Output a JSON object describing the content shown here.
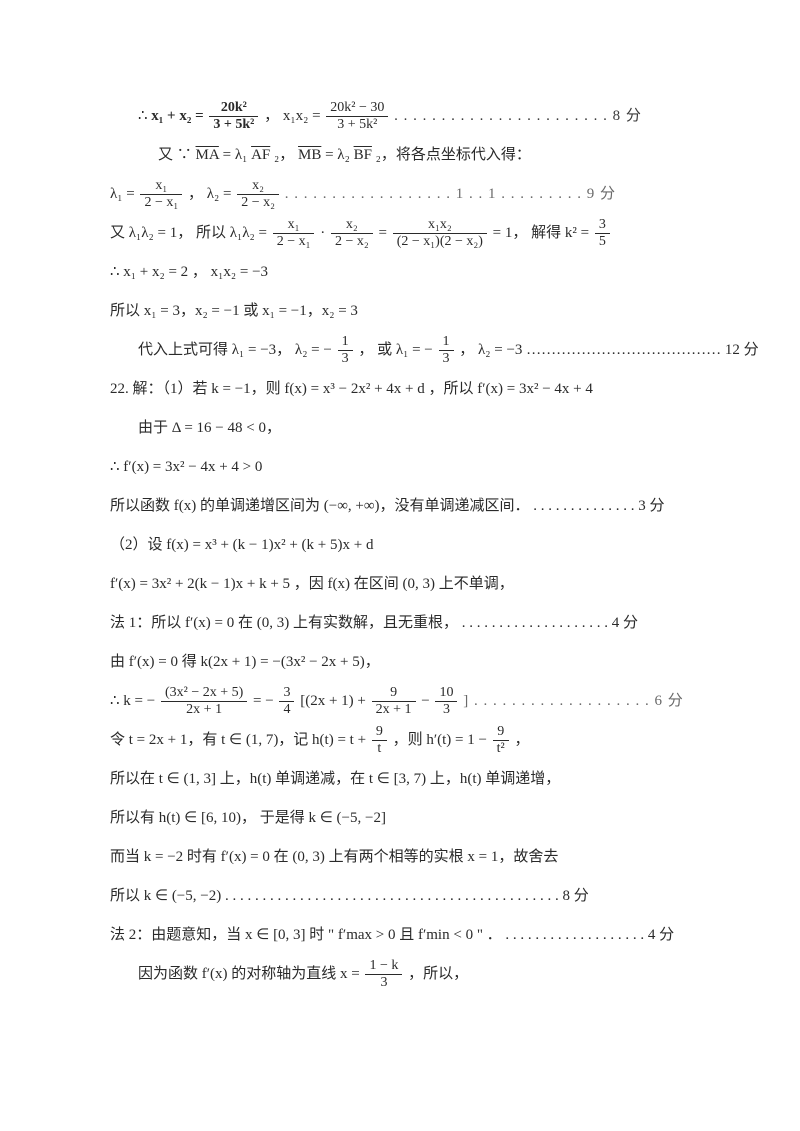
{
  "lines": {
    "l1a": "∴ ",
    "l1b": " x₁ + x₂ = ",
    "l1_frac1_num": "20k²",
    "l1_frac1_den": "3 + 5k²",
    "l1c": "， x₁x₂ = ",
    "l1_frac2_num": "20k² − 30",
    "l1_frac2_den": "3 + 5k²",
    "l1d": " . . . . . . . . . . . . . . . . . . . . . . . 8 分",
    "l2a": "又 ∵ ",
    "l2_ma": "MA",
    "l2b": " = λ₁",
    "l2_af": "AF",
    "l2c": "₂，",
    "l2_mb": "MB",
    "l2d": " = λ₂",
    "l2_bf": "BF",
    "l2e": "₂，将各点坐标代入得：",
    "l3a": "λ₁ = ",
    "l3_f1n": "x₁",
    "l3_f1d": "2 − x₁",
    "l3b": "， λ₂ = ",
    "l3_f2n": "x₂",
    "l3_f2d": "2 − x₂",
    "l3c": "  . . . . . . . . . . . . . . .  . . . 1 . . 1 . . . . . . . . .  9 分",
    "l4a": "又 λ₁λ₂ = 1， 所以 λ₁λ₂ = ",
    "l4_f1n": "x₁",
    "l4_f1d": "2 − x₁",
    "l4b": " · ",
    "l4_f2n": "x₂",
    "l4_f2d": "2 − x₂",
    "l4c": " = ",
    "l4_f3n": "x₁x₂",
    "l4_f3d": "(2 − x₁)(2 − x₂)",
    "l4d": " = 1， 解得 k² = ",
    "l4_f4n": "3",
    "l4_f4d": "5",
    "l5": "∴ x₁ + x₂ = 2 ， x₁x₂ = −3",
    "l6": "所以 x₁ = 3，x₂ = −1 或 x₁ = −1，x₂ = 3",
    "l7a": "代入上式可得 λ₁ = −3， λ₂ = −",
    "l7_f1n": "1",
    "l7_f1d": "3",
    "l7b": "， 或 λ₁ = −",
    "l7_f2n": "1",
    "l7_f2d": "3",
    "l7c": "， λ₂ = −3  ………………………………… 12 分",
    "l8": "22. 解：（1）若 k = −1，则 f(x) = x³ − 2x² + 4x + d ，所以 f′(x) = 3x² − 4x + 4",
    "l9": "由于 Δ = 16 − 48 < 0，",
    "l10": "∴ f′(x) = 3x² − 4x + 4 > 0",
    "l11": "所以函数 f(x) 的单调递增区间为 (−∞, +∞)，没有单调递减区间． . . . . . . . . . . . . . . 3 分",
    "l12": "（2）设 f(x) = x³ + (k − 1)x² + (k + 5)x + d",
    "l13": "f′(x) = 3x² + 2(k − 1)x + k + 5 ，因 f(x) 在区间 (0, 3) 上不单调，",
    "l14": "法 1：所以 f′(x) = 0 在 (0, 3) 上有实数解，且无重根， . . . . . . . . . . . . . . . . . . . . 4 分",
    "l15": "由 f′(x) = 0 得 k(2x + 1) = −(3x² − 2x + 5)，",
    "l16a": "∴ k = −",
    "l16_f1n": "(3x² − 2x + 5)",
    "l16_f1d": "2x + 1",
    "l16b": " = −",
    "l16_f2n": "3",
    "l16_f2d": "4",
    "l16c": "[(2x + 1) + ",
    "l16_f3n": "9",
    "l16_f3d": "2x + 1",
    "l16d": " − ",
    "l16_f4n": "10",
    "l16_f4d": "3",
    "l16e": "] . . . . . . . . . . . . . . . . . . . 6 分",
    "l17a": "令 t = 2x + 1，有 t ∈ (1, 7)，记 h(t) = t + ",
    "l17_f1n": "9",
    "l17_f1d": "t",
    "l17b": "，则 h′(t) = 1 − ",
    "l17_f2n": "9",
    "l17_f2d": "t²",
    "l17c": " ，",
    "l18": "所以在 t ∈ (1, 3] 上，h(t) 单调递减，在 t ∈ [3, 7) 上，h(t) 单调递增，",
    "l19": "所以有 h(t) ∈ [6, 10)， 于是得 k ∈ (−5, −2]",
    "l20": "而当 k = −2 时有 f′(x) = 0 在 (0, 3) 上有两个相等的实根 x = 1，故舍去",
    "l21": "所以 k ∈ (−5, −2) . . . . . . . . . . . . . . . . . . . . . . . . . . . . . . . . . . . . . . . . . . . . . 8 分",
    "l22": "法 2：由题意知，当 x ∈ [0, 3] 时 \" f′max > 0 且 f′min < 0 \" ． . . . . . . . . . . . . . . . . . . . 4 分",
    "l23a": "因为函数 f′(x) 的对称轴为直线 x = ",
    "l23_f1n": "1 − k",
    "l23_f1d": "3",
    "l23b": "，所以，"
  }
}
